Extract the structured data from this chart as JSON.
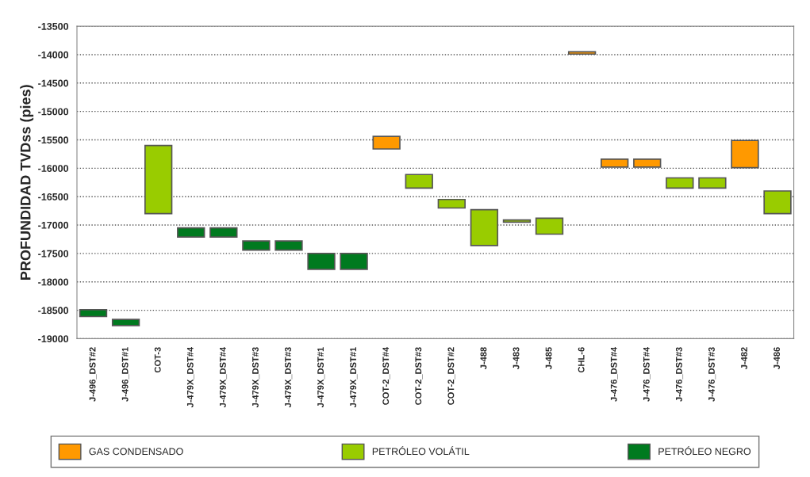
{
  "chart_data": {
    "type": "bar",
    "ylabel": "PROFUNDIDAD TVDss (pies)",
    "categories": [
      "J-496_DST#2",
      "J-496_DST#1",
      "COT-3",
      "J-479X_DST#4",
      "J-479X_DST#4",
      "J-479X_DST#3",
      "J-479X_DST#3",
      "J-479X_DST#1",
      "J-479X_DST#1",
      "COT-2_DST#4",
      "COT-2_DST#3",
      "COT-2_DST#2",
      "J-488",
      "J-483",
      "J-485",
      "CHL-6",
      "J-476_DST#4",
      "J-476_DST#4",
      "J-476_DST#3",
      "J-476_DST#3",
      "J-482",
      "J-486"
    ],
    "series": [
      {
        "name": "GAS CONDENSADO",
        "color": "#ff9900",
        "values": [
          null,
          null,
          null,
          null,
          null,
          null,
          null,
          null,
          null,
          220,
          null,
          null,
          null,
          null,
          null,
          40,
          140,
          140,
          null,
          null,
          480,
          null
        ],
        "base": [
          null,
          null,
          null,
          null,
          null,
          null,
          null,
          null,
          null,
          -15660,
          null,
          null,
          null,
          null,
          null,
          -13990,
          -15980,
          -15980,
          null,
          null,
          -15990,
          null
        ]
      },
      {
        "name": "PETRÓLEO VOLÁTIL",
        "color": "#99cc00",
        "values": [
          null,
          null,
          1200,
          null,
          null,
          null,
          null,
          null,
          null,
          null,
          240,
          150,
          630,
          40,
          280,
          null,
          null,
          null,
          180,
          180,
          null,
          400
        ],
        "base": [
          null,
          null,
          -16800,
          null,
          null,
          null,
          null,
          null,
          null,
          null,
          -16350,
          -16700,
          -17360,
          -16950,
          -17160,
          null,
          null,
          null,
          -16350,
          -16350,
          null,
          -16800
        ]
      },
      {
        "name": "PETRÓLEO NEGRO",
        "color": "#007a1f",
        "values": [
          120,
          110,
          null,
          160,
          160,
          160,
          160,
          280,
          280,
          null,
          null,
          null,
          null,
          null,
          null,
          null,
          null,
          null,
          null,
          null,
          null,
          null
        ],
        "base": [
          -18610,
          -18770,
          null,
          -17210,
          -17210,
          -17440,
          -17440,
          -17780,
          -17780,
          null,
          null,
          null,
          null,
          null,
          null,
          null,
          null,
          null,
          null,
          null,
          null,
          null
        ]
      }
    ],
    "ylim": [
      -19000,
      -13500
    ],
    "yticks": [
      -19000,
      -18500,
      -18000,
      -17500,
      -17000,
      -16500,
      -16000,
      -15500,
      -15000,
      -14500,
      -14000,
      -13500
    ],
    "grid": "y",
    "legend": "bottom"
  }
}
